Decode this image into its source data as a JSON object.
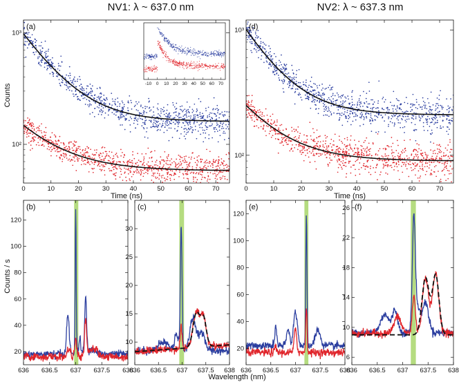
{
  "titles": {
    "left": "NV1: λ ~ 637.0 nm",
    "right": "NV2: λ ~ 637.3 nm"
  },
  "shared_labels": {
    "ylabel_top": "Counts",
    "ylabel_bottom": "Counts / s",
    "xlabel_bottom": "Wavelength (nm)"
  },
  "colors": {
    "blue": "#2c3fa0",
    "red": "#e0252b",
    "fit": "#111111",
    "band": "#a8d66a"
  },
  "chart_data": [
    {
      "id": "a",
      "type": "scatter",
      "panel_label": "(a)",
      "xlabel": "Time (ns)",
      "ylabel": "Counts",
      "yscale": "log",
      "xlim": [
        0,
        75
      ],
      "ylim": [
        45,
        1300
      ],
      "xticks": [
        "0",
        "10",
        "20",
        "30",
        "40",
        "50",
        "60",
        "70"
      ],
      "yticks": [
        {
          "value": 1000,
          "label": "10³"
        },
        {
          "value": 100,
          "label": "10²"
        }
      ],
      "series": [
        {
          "name": "blue",
          "color": "blue",
          "decay": {
            "A": 820,
            "C": 160,
            "tau": 11.5
          }
        },
        {
          "name": "red",
          "color": "red",
          "decay": {
            "A": 90,
            "C": 58,
            "tau": 14
          }
        }
      ],
      "inset": {
        "xlim": [
          -15,
          75
        ],
        "xticks": [
          "-10",
          "0",
          "10",
          "20",
          "30",
          "40",
          "50",
          "60",
          "70"
        ],
        "series": [
          {
            "name": "blue",
            "color": "blue",
            "pre": 0.35,
            "peak": 1.0,
            "base": 0.4,
            "tau": 14
          },
          {
            "name": "red",
            "color": "red",
            "pre": 0.08,
            "peak": 0.72,
            "base": 0.14,
            "tau": 10
          }
        ]
      }
    },
    {
      "id": "d",
      "type": "scatter",
      "panel_label": "(d)",
      "xlabel": "Time (ns)",
      "yscale": "log",
      "xlim": [
        0,
        75
      ],
      "ylim": [
        60,
        1200
      ],
      "xticks": [
        "0",
        "10",
        "20",
        "30",
        "40",
        "50",
        "60",
        "70"
      ],
      "yticks": [
        {
          "value": 1000,
          "label": "10³"
        },
        {
          "value": 100,
          "label": "10²"
        }
      ],
      "series": [
        {
          "name": "blue",
          "color": "blue",
          "decay": {
            "A": 800,
            "C": 210,
            "tau": 11
          }
        },
        {
          "name": "red",
          "color": "red",
          "decay": {
            "A": 160,
            "C": 90,
            "tau": 13
          }
        }
      ]
    },
    {
      "id": "b",
      "type": "line",
      "panel_label": "(b)",
      "xlim": [
        636,
        638
      ],
      "ylim": [
        10,
        135
      ],
      "xticks": [
        "636",
        "636.5",
        "637",
        "637.5",
        "638"
      ],
      "yticks": [
        20,
        40,
        60,
        80,
        100,
        120
      ],
      "band": [
        636.97,
        637.05
      ],
      "series": [
        {
          "name": "blue",
          "color": "blue",
          "base": 18,
          "slope": 0,
          "peaks": [
            [
              636.85,
              30,
              0.025
            ],
            [
              637.0,
              112,
              0.01
            ],
            [
              637.08,
              14,
              0.015
            ],
            [
              637.19,
              42,
              0.018
            ],
            [
              637.3,
              3,
              0.1
            ]
          ]
        },
        {
          "name": "red",
          "color": "red",
          "base": 16,
          "slope": 0,
          "peaks": [
            [
              636.87,
              6,
              0.03
            ],
            [
              637.0,
              13,
              0.02
            ],
            [
              637.19,
              28,
              0.02
            ],
            [
              637.35,
              6,
              0.08
            ]
          ]
        }
      ]
    },
    {
      "id": "c",
      "type": "line",
      "panel_label": "(c)",
      "xlim": [
        636,
        638
      ],
      "ylim": [
        6,
        35
      ],
      "xticks": [
        "636",
        "636.5",
        "637",
        "637.5",
        "638"
      ],
      "yticks": [
        10,
        15,
        20,
        25,
        30
      ],
      "band": [
        636.94,
        637.04
      ],
      "series": [
        {
          "name": "blue",
          "color": "blue",
          "base": 8.5,
          "slope": 0,
          "peaks": [
            [
              636.6,
              1.5,
              0.1
            ],
            [
              636.98,
              22,
              0.018
            ],
            [
              636.88,
              3,
              0.04
            ],
            [
              637.22,
              5.5,
              0.06
            ],
            [
              637.4,
              3,
              0.08
            ]
          ]
        },
        {
          "name": "red",
          "color": "red",
          "base": 8.3,
          "slope": 1.2,
          "peaks": [
            [
              636.98,
              4,
              0.02
            ],
            [
              637.3,
              6,
              0.07
            ],
            [
              637.45,
              5,
              0.06
            ]
          ]
        },
        {
          "name": "fit",
          "color": "fit",
          "dashed": true,
          "base": 8.3,
          "slope": 1.2,
          "peaks": [
            [
              637.3,
              6,
              0.07
            ],
            [
              637.45,
              5,
              0.06
            ]
          ]
        }
      ]
    },
    {
      "id": "e",
      "type": "line",
      "panel_label": "(e)",
      "xlim": [
        636,
        638
      ],
      "ylim": [
        8,
        130
      ],
      "xticks": [
        "636",
        "636.5",
        "637",
        "637.5",
        "638"
      ],
      "yticks": [
        20,
        40,
        60,
        80,
        100,
        120
      ],
      "band": [
        637.18,
        637.26
      ],
      "series": [
        {
          "name": "blue",
          "color": "blue",
          "base": 22,
          "slope": 0,
          "peaks": [
            [
              636.6,
              14,
              0.02
            ],
            [
              636.85,
              12,
              0.03
            ],
            [
              637.0,
              25,
              0.04
            ],
            [
              637.22,
              98,
              0.012
            ],
            [
              637.45,
              12,
              0.05
            ]
          ]
        },
        {
          "name": "red",
          "color": "red",
          "base": 17,
          "slope": 0,
          "peaks": [
            [
              636.6,
              4,
              0.02
            ],
            [
              637.0,
              18,
              0.025
            ],
            [
              637.22,
              33,
              0.015
            ]
          ]
        }
      ]
    },
    {
      "id": "f",
      "type": "line",
      "panel_label": "(f)",
      "xlim": [
        636,
        638
      ],
      "ylim": [
        5,
        27
      ],
      "xticks": [
        "636",
        "636.5",
        "637",
        "637.5",
        "638"
      ],
      "yticks": [
        6,
        10,
        14,
        18,
        22,
        26
      ],
      "band": [
        637.16,
        637.26
      ],
      "series": [
        {
          "name": "blue",
          "color": "blue",
          "base": 9.3,
          "slope": 0,
          "peaks": [
            [
              636.65,
              2.5,
              0.08
            ],
            [
              636.85,
              3,
              0.05
            ],
            [
              637.22,
              15,
              0.03
            ],
            [
              637.3,
              3,
              0.05
            ],
            [
              637.45,
              4,
              0.06
            ]
          ]
        },
        {
          "name": "red",
          "color": "red",
          "base": 9.2,
          "slope": 0,
          "peaks": [
            [
              636.9,
              2.2,
              0.07
            ],
            [
              637.22,
              5,
              0.03
            ],
            [
              637.45,
              7.5,
              0.06
            ],
            [
              637.65,
              8,
              0.06
            ]
          ]
        },
        {
          "name": "fit",
          "color": "fit",
          "dashed": true,
          "base": 9.0,
          "slope": 0,
          "peaks": [
            [
              637.45,
              7.6,
              0.07
            ],
            [
              637.65,
              8,
              0.065
            ]
          ]
        }
      ]
    }
  ]
}
